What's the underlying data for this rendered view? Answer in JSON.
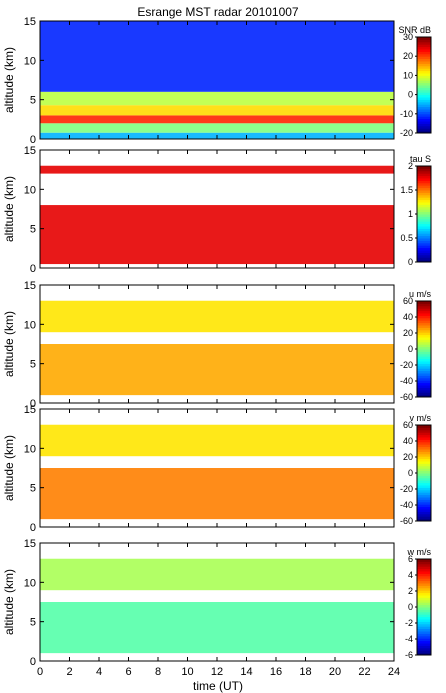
{
  "figure": {
    "title": "Esrange MST radar 20101007",
    "xlabel": "time (UT)"
  },
  "chart_data": [
    {
      "type": "heatmap",
      "title": "Esrange MST radar 20101007",
      "ylabel": "altitude (km)",
      "xlabel": "",
      "xlim": [
        0,
        24
      ],
      "ylim": [
        0,
        15
      ],
      "x_ticks": [
        0,
        2,
        4,
        6,
        8,
        10,
        12,
        14,
        16,
        18,
        20,
        22,
        24
      ],
      "y_ticks": [
        0,
        5,
        10,
        15
      ],
      "colorbar": {
        "label": "SNR dB",
        "range": [
          -20,
          30
        ],
        "ticks": [
          -20,
          -10,
          0,
          10,
          20,
          30
        ]
      },
      "layers": [
        {
          "alt_range": [
            0,
            0.8
          ],
          "value": -5
        },
        {
          "alt_range": [
            0.8,
            2.0
          ],
          "value": 5
        },
        {
          "alt_range": [
            2.0,
            3.0
          ],
          "value": 22
        },
        {
          "alt_range": [
            3.0,
            4.3
          ],
          "value": 13
        },
        {
          "alt_range": [
            4.3,
            6.0
          ],
          "value": 8
        },
        {
          "alt_range": [
            6.0,
            15.0
          ],
          "value": -12
        }
      ]
    },
    {
      "type": "heatmap",
      "title": "",
      "ylabel": "altitude (km)",
      "xlim": [
        0,
        24
      ],
      "ylim": [
        0,
        15
      ],
      "x_ticks": [
        0,
        2,
        4,
        6,
        8,
        10,
        12,
        14,
        16,
        18,
        20,
        22,
        24
      ],
      "y_ticks": [
        0,
        5,
        10,
        15
      ],
      "colorbar": {
        "label": "tau S",
        "range": [
          0,
          2
        ],
        "ticks": [
          0,
          0.5,
          1,
          1.5,
          2
        ]
      },
      "layers": [
        {
          "alt_range": [
            0.5,
            8.0
          ],
          "value": 1.8
        },
        {
          "alt_range": [
            12.0,
            13.0
          ],
          "value": 1.8
        }
      ]
    },
    {
      "type": "heatmap",
      "title": "",
      "ylabel": "altitude (km)",
      "xlim": [
        0,
        24
      ],
      "ylim": [
        0,
        15
      ],
      "x_ticks": [
        0,
        2,
        4,
        6,
        8,
        10,
        12,
        14,
        16,
        18,
        20,
        22,
        24
      ],
      "y_ticks": [
        0,
        5,
        10,
        15
      ],
      "colorbar": {
        "label": "u m/s",
        "range": [
          -60,
          60
        ],
        "ticks": [
          -60,
          -40,
          -20,
          0,
          20,
          40,
          60
        ]
      },
      "layers": [
        {
          "alt_range": [
            1.0,
            7.5
          ],
          "value": 25
        },
        {
          "alt_range": [
            9.0,
            13.0
          ],
          "value": 18
        }
      ]
    },
    {
      "type": "heatmap",
      "title": "",
      "ylabel": "altitude (km)",
      "xlim": [
        0,
        24
      ],
      "ylim": [
        0,
        15
      ],
      "x_ticks": [
        0,
        2,
        4,
        6,
        8,
        10,
        12,
        14,
        16,
        18,
        20,
        22,
        24
      ],
      "y_ticks": [
        0,
        5,
        10,
        15
      ],
      "colorbar": {
        "label": "v m/s",
        "range": [
          -60,
          60
        ],
        "ticks": [
          -60,
          -40,
          -20,
          0,
          20,
          40,
          60
        ]
      },
      "layers": [
        {
          "alt_range": [
            1.0,
            7.5
          ],
          "value": 30
        },
        {
          "alt_range": [
            9.0,
            13.0
          ],
          "value": 18
        }
      ]
    },
    {
      "type": "heatmap",
      "title": "",
      "ylabel": "altitude (km)",
      "xlabel": "time (UT)",
      "xlim": [
        0,
        24
      ],
      "ylim": [
        0,
        15
      ],
      "x_ticks": [
        0,
        2,
        4,
        6,
        8,
        10,
        12,
        14,
        16,
        18,
        20,
        22,
        24
      ],
      "y_ticks": [
        0,
        5,
        10,
        15
      ],
      "colorbar": {
        "label": "w m/s",
        "range": [
          -6,
          6
        ],
        "ticks": [
          -6,
          -4,
          -2,
          0,
          2,
          4,
          6
        ]
      },
      "layers": [
        {
          "alt_range": [
            1.0,
            7.5
          ],
          "value": -0.5
        },
        {
          "alt_range": [
            9.0,
            13.0
          ],
          "value": 0.5
        }
      ]
    }
  ]
}
